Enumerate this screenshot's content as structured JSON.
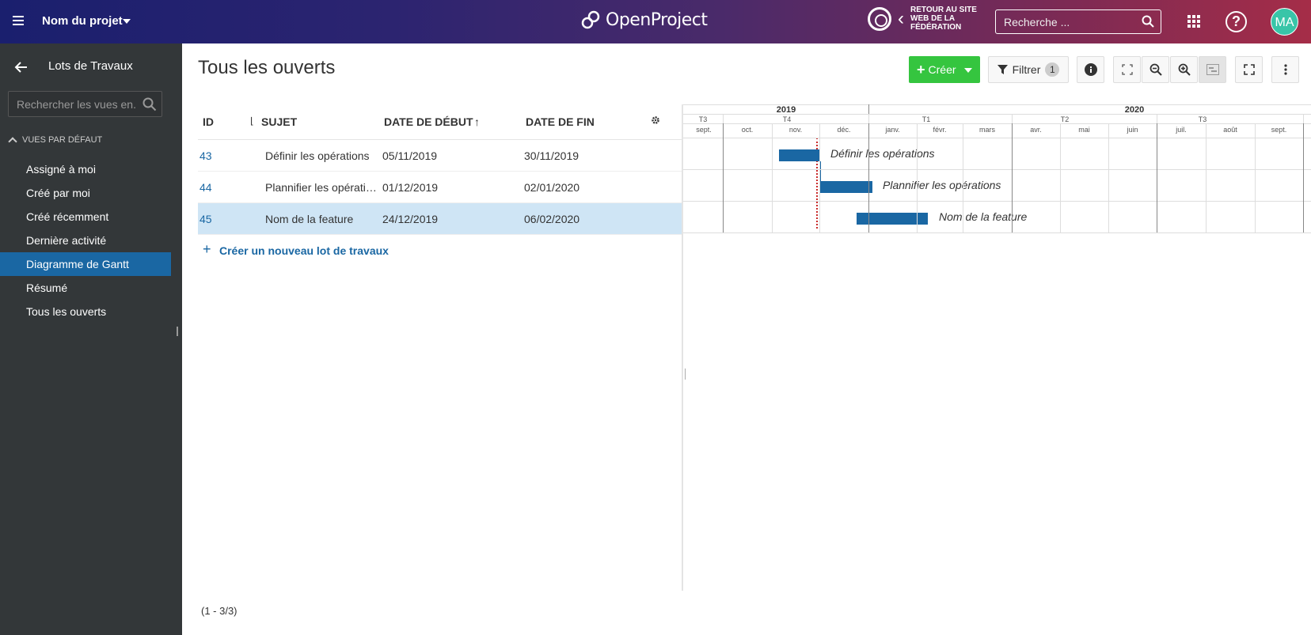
{
  "header": {
    "project_name": "Nom du projet",
    "logo_text": "OpenProject",
    "federation_text": "RETOUR AU SITE WEB DE LA FÉDÉRATION",
    "search_placeholder": "Recherche ...",
    "avatar_initials": "MA",
    "help_glyph": "?"
  },
  "sidebar": {
    "title": "Lots de Travaux",
    "search_placeholder": "Rechercher les vues en...",
    "section_label": "VUES PAR DÉFAUT",
    "items": [
      {
        "label": "Assigné à moi",
        "active": false
      },
      {
        "label": "Créé par moi",
        "active": false
      },
      {
        "label": "Créé récemment",
        "active": false
      },
      {
        "label": "Dernière activité",
        "active": false
      },
      {
        "label": "Diagramme de Gantt",
        "active": true
      },
      {
        "label": "Résumé",
        "active": false
      },
      {
        "label": "Tous les ouverts",
        "active": false
      }
    ]
  },
  "main": {
    "title": "Tous les ouverts",
    "create_label": "Créer",
    "filter_label": "Filtrer",
    "filter_count": "1",
    "footer_count": "(1 - 3/3)",
    "create_new_label": "Créer un nouveau lot de travaux"
  },
  "table": {
    "columns": {
      "id": "ID",
      "subject": "SUJET",
      "start": "DATE DE DÉBUT",
      "end": "DATE DE FIN"
    },
    "rows": [
      {
        "id": "43",
        "subject": "Définir les opérations",
        "start": "05/11/2019",
        "end": "30/11/2019",
        "selected": false
      },
      {
        "id": "44",
        "subject": "Plannifier les opératio...",
        "start": "01/12/2019",
        "end": "02/01/2020",
        "selected": false
      },
      {
        "id": "45",
        "subject": "Nom de la feature",
        "start": "24/12/2019",
        "end": "06/02/2020",
        "selected": true
      }
    ]
  },
  "gantt": {
    "years": [
      "2019",
      "2020"
    ],
    "quarters": [
      "T3",
      "T4",
      "T1",
      "T2",
      "T3"
    ],
    "months": [
      "sept.",
      "oct.",
      "nov.",
      "déc.",
      "janv.",
      "févr.",
      "mars",
      "avr.",
      "mai",
      "juin",
      "juil.",
      "août",
      "sept."
    ],
    "bars": [
      {
        "label": "Définir les opérations"
      },
      {
        "label": "Plannifier les opérations"
      },
      {
        "label": "Nom de la feature"
      }
    ],
    "bar_color": "#1a67a3"
  },
  "colors": {
    "accent": "#1a67a3",
    "create": "#35c53f",
    "sidebar_bg": "#333739",
    "selected_row": "#cfe5f5"
  }
}
